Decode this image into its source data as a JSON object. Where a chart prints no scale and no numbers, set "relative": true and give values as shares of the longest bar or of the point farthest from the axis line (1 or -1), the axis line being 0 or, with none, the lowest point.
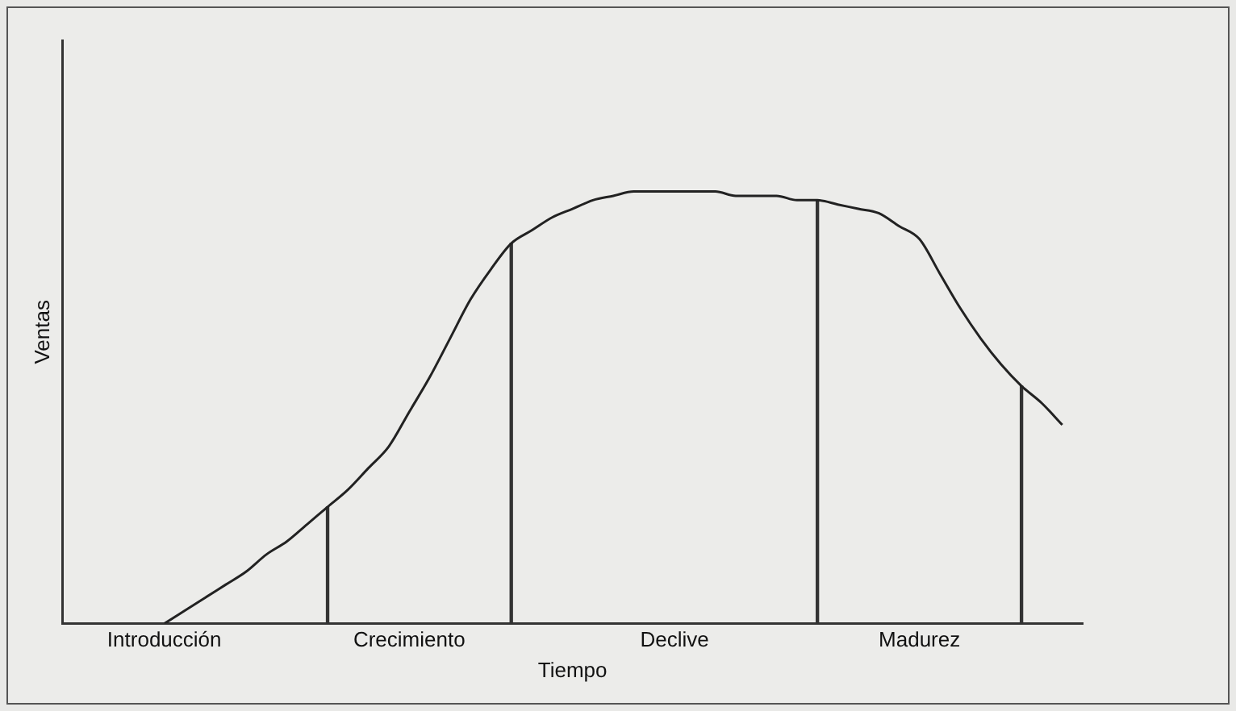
{
  "chart_data": {
    "type": "line",
    "relative": true,
    "xlabel": "Tiempo",
    "ylabel": "Ventas",
    "categories": [
      null,
      null,
      null,
      null,
      null,
      "Introducción",
      null,
      null,
      null,
      null,
      null,
      null,
      null,
      null,
      null,
      null,
      null,
      "Crecimiento",
      null,
      null,
      null,
      null,
      null,
      null,
      null,
      null,
      null,
      null,
      null,
      null,
      "Declive",
      null,
      null,
      null,
      null,
      null,
      null,
      null,
      null,
      null,
      null,
      null,
      "Madurez",
      null,
      null,
      null,
      null,
      null,
      null,
      null,
      null
    ],
    "series": [
      {
        "color": "#222222",
        "values": [
          null,
          null,
          null,
          null,
          null,
          0,
          0.03,
          0.06,
          0.09,
          0.12,
          0.16,
          0.19,
          0.23,
          0.27,
          0.31,
          0.36,
          0.41,
          0.49,
          0.57,
          0.66,
          0.75,
          0.82,
          0.88,
          0.91,
          0.94,
          0.96,
          0.98,
          0.99,
          1,
          1,
          1,
          1,
          1,
          0.99,
          0.99,
          0.99,
          0.98,
          0.98,
          0.97,
          0.96,
          0.95,
          0.92,
          0.89,
          0.81,
          0.73,
          0.66,
          0.6,
          0.55,
          0.51,
          0.46,
          null
        ]
      },
      {
        "type": "bar",
        "color": "#333333",
        "values": [
          null,
          null,
          null,
          null,
          null,
          null,
          null,
          null,
          null,
          null,
          null,
          null,
          null,
          0.27,
          null,
          null,
          null,
          null,
          null,
          null,
          null,
          null,
          0.88,
          null,
          null,
          null,
          null,
          null,
          null,
          null,
          null,
          null,
          null,
          null,
          null,
          null,
          null,
          0.98,
          null,
          null,
          null,
          null,
          null,
          null,
          null,
          null,
          null,
          0.55,
          null,
          null,
          null
        ]
      }
    ],
    "tick_labels": "x",
    "grid": false,
    "legend": false,
    "marker": "none",
    "line_style": "solid"
  }
}
